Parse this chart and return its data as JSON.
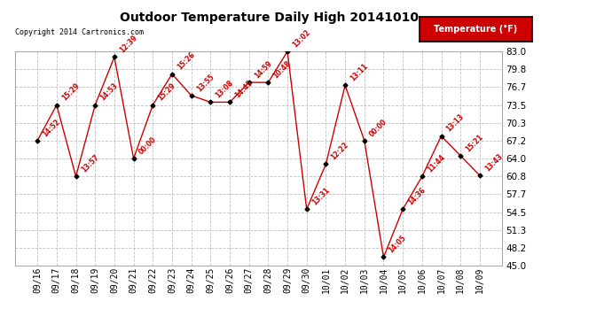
{
  "title": "Outdoor Temperature Daily High 20141010",
  "copyright": "Copyright 2014 Cartronics.com",
  "legend_label": "Temperature (°F)",
  "dates": [
    "09/16",
    "09/17",
    "09/18",
    "09/19",
    "09/20",
    "09/21",
    "09/22",
    "09/23",
    "09/24",
    "09/25",
    "09/26",
    "09/27",
    "09/28",
    "09/29",
    "09/30",
    "10/01",
    "10/02",
    "10/03",
    "10/04",
    "10/05",
    "10/06",
    "10/07",
    "10/08",
    "10/09"
  ],
  "temps": [
    67.2,
    73.5,
    60.8,
    73.5,
    82.0,
    64.0,
    73.5,
    79.0,
    75.2,
    74.0,
    74.0,
    77.5,
    77.5,
    83.0,
    55.0,
    63.0,
    77.0,
    67.2,
    46.5,
    55.0,
    60.8,
    68.0,
    64.5,
    61.0
  ],
  "labels": [
    "14:52",
    "15:29",
    "13:57",
    "14:53",
    "12:39",
    "00:00",
    "15:29",
    "15:26",
    "13:55",
    "13:08",
    "14:45",
    "14:59",
    "10:48",
    "13:02",
    "13:31",
    "12:22",
    "13:11",
    "00:00",
    "14:05",
    "14:36",
    "11:44",
    "13:13",
    "15:21",
    "13:43"
  ],
  "ylim": [
    45.0,
    83.0
  ],
  "yticks": [
    45.0,
    48.2,
    51.3,
    54.5,
    57.7,
    60.8,
    64.0,
    67.2,
    70.3,
    73.5,
    76.7,
    79.8,
    83.0
  ],
  "line_color": "#cc0000",
  "marker_color": "#000000",
  "background_color": "#ffffff",
  "grid_color": "#c0c0c0",
  "title_color": "#000000",
  "copyright_color": "#000000",
  "label_color": "#cc0000",
  "legend_bg": "#cc0000",
  "legend_text_color": "#ffffff",
  "figsize": [
    6.9,
    3.75
  ],
  "dpi": 100
}
